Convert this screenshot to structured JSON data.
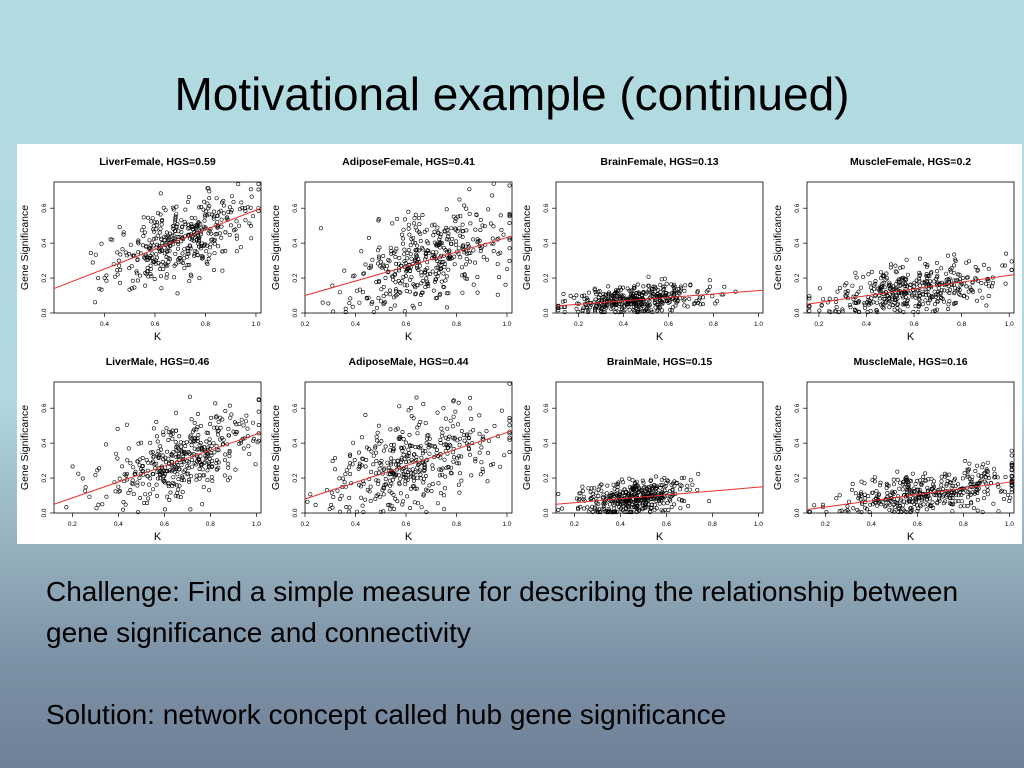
{
  "slide": {
    "title": "Motivational example (continued)",
    "challenge": "Challenge: Find a simple measure for describing the relationship between gene significance and connectivity",
    "solution": "Solution: network concept called hub gene significance"
  },
  "colors": {
    "points": "#000000",
    "fit_line": "#e8302c",
    "background_top": "#b3dce2",
    "background_bottom": "#6f8097"
  },
  "chart_data": [
    {
      "type": "scatter",
      "title": "LiverFemale, HGS=0.59",
      "xlabel": "K",
      "ylabel": "Gene Significance",
      "xlim": [
        0.2,
        1.02
      ],
      "ylim": [
        0,
        0.75
      ],
      "xticks": [
        0.4,
        0.6,
        0.8,
        1.0
      ],
      "yticks": [
        0,
        0.2,
        0.4,
        0.6
      ],
      "fit": {
        "x": [
          0.2,
          1.02
        ],
        "y": [
          0.14,
          0.6
        ]
      },
      "cloud": {
        "x_mean": 0.7,
        "x_sd": 0.14,
        "y_mean": 0.38,
        "y_sd": 0.12,
        "n": 420
      }
    },
    {
      "type": "scatter",
      "title": "AdiposeFemale, HGS=0.41",
      "xlabel": "K",
      "ylabel": "Gene Significance",
      "xlim": [
        0.2,
        1.02
      ],
      "ylim": [
        0,
        0.75
      ],
      "xticks": [
        0.2,
        0.4,
        0.6,
        0.8,
        1.0
      ],
      "yticks": [
        0,
        0.2,
        0.4,
        0.6
      ],
      "fit": {
        "x": [
          0.2,
          1.02
        ],
        "y": [
          0.1,
          0.44
        ]
      },
      "cloud": {
        "x_mean": 0.68,
        "x_sd": 0.15,
        "y_mean": 0.3,
        "y_sd": 0.16,
        "n": 420
      }
    },
    {
      "type": "scatter",
      "title": "BrainFemale, HGS=0.13",
      "xlabel": "K",
      "ylabel": "Gene Significance",
      "xlim": [
        0.1,
        1.02
      ],
      "ylim": [
        0,
        0.75
      ],
      "xticks": [
        0.2,
        0.4,
        0.6,
        0.8,
        1.0
      ],
      "yticks": [
        0,
        0.2,
        0.4,
        0.6
      ],
      "fit": {
        "x": [
          0.1,
          1.02
        ],
        "y": [
          0.04,
          0.13
        ]
      },
      "cloud": {
        "x_mean": 0.45,
        "x_sd": 0.16,
        "y_mean": 0.07,
        "y_sd": 0.05,
        "n": 420
      }
    },
    {
      "type": "scatter",
      "title": "MuscleFemale, HGS=0.2",
      "xlabel": "K",
      "ylabel": "Gene Significance",
      "xlim": [
        0.15,
        1.02
      ],
      "ylim": [
        0,
        0.75
      ],
      "xticks": [
        0.2,
        0.4,
        0.6,
        0.8,
        1.0
      ],
      "yticks": [
        0,
        0.2,
        0.4,
        0.6
      ],
      "fit": {
        "x": [
          0.15,
          1.02
        ],
        "y": [
          0.05,
          0.22
        ]
      },
      "cloud": {
        "x_mean": 0.6,
        "x_sd": 0.18,
        "y_mean": 0.14,
        "y_sd": 0.08,
        "n": 420
      }
    },
    {
      "type": "scatter",
      "title": "LiverMale, HGS=0.46",
      "xlabel": "K",
      "ylabel": "Gene Significance",
      "xlim": [
        0.12,
        1.02
      ],
      "ylim": [
        0,
        0.75
      ],
      "xticks": [
        0.2,
        0.4,
        0.6,
        0.8,
        1.0
      ],
      "yticks": [
        0,
        0.2,
        0.4,
        0.6
      ],
      "fit": {
        "x": [
          0.12,
          1.02
        ],
        "y": [
          0.05,
          0.46
        ]
      },
      "cloud": {
        "x_mean": 0.68,
        "x_sd": 0.17,
        "y_mean": 0.32,
        "y_sd": 0.12,
        "n": 420
      }
    },
    {
      "type": "scatter",
      "title": "AdiposeMale, HGS=0.44",
      "xlabel": "K",
      "ylabel": "Gene Significance",
      "xlim": [
        0.2,
        1.02
      ],
      "ylim": [
        0,
        0.75
      ],
      "xticks": [
        0.2,
        0.4,
        0.6,
        0.8,
        1.0
      ],
      "yticks": [
        0,
        0.2,
        0.4,
        0.6
      ],
      "fit": {
        "x": [
          0.2,
          1.02
        ],
        "y": [
          0.08,
          0.47
        ]
      },
      "cloud": {
        "x_mean": 0.62,
        "x_sd": 0.16,
        "y_mean": 0.25,
        "y_sd": 0.15,
        "n": 420
      }
    },
    {
      "type": "scatter",
      "title": "BrainMale, HGS=0.15",
      "xlabel": "K",
      "ylabel": "Gene Significance",
      "xlim": [
        0.12,
        1.02
      ],
      "ylim": [
        0,
        0.75
      ],
      "xticks": [
        0.2,
        0.4,
        0.6,
        0.8,
        1.0
      ],
      "yticks": [
        0,
        0.2,
        0.4,
        0.6
      ],
      "fit": {
        "x": [
          0.12,
          1.02
        ],
        "y": [
          0.05,
          0.15
        ]
      },
      "cloud": {
        "x_mean": 0.45,
        "x_sd": 0.12,
        "y_mean": 0.1,
        "y_sd": 0.06,
        "n": 420
      }
    },
    {
      "type": "scatter",
      "title": "MuscleMale, HGS=0.16",
      "xlabel": "K",
      "ylabel": "Gene Significance",
      "xlim": [
        0.12,
        1.02
      ],
      "ylim": [
        0,
        0.75
      ],
      "xticks": [
        0.2,
        0.4,
        0.6,
        0.8,
        1.0
      ],
      "yticks": [
        0,
        0.2,
        0.4,
        0.6
      ],
      "fit": {
        "x": [
          0.12,
          1.02
        ],
        "y": [
          0.02,
          0.18
        ]
      },
      "cloud": {
        "x_mean": 0.65,
        "x_sd": 0.2,
        "y_mean": 0.11,
        "y_sd": 0.07,
        "n": 420
      }
    }
  ]
}
